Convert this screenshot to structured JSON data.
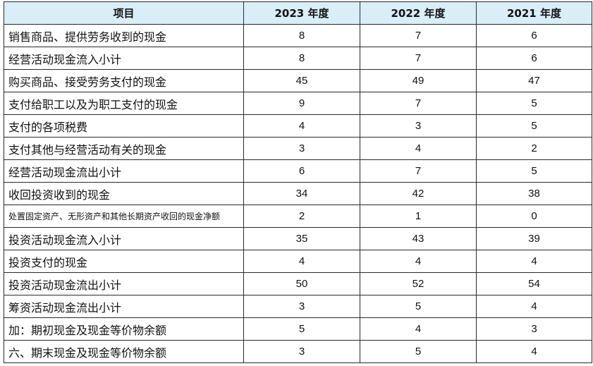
{
  "chart_data": {
    "type": "table",
    "columns": [
      "项目",
      "2023 年度",
      "2022 年度",
      "2021 年度"
    ],
    "rows": [
      {
        "label": "销售商品、提供劳务收到的现金",
        "values": [
          "8",
          "7",
          "6"
        ]
      },
      {
        "label": "经营活动现金流入小计",
        "values": [
          "8",
          "7",
          "6"
        ]
      },
      {
        "label": "购买商品、接受劳务支付的现金",
        "values": [
          "45",
          "49",
          "47"
        ]
      },
      {
        "label": "支付给职工以及为职工支付的现金",
        "values": [
          "9",
          "7",
          "5"
        ]
      },
      {
        "label": "支付的各项税费",
        "values": [
          "4",
          "3",
          "5"
        ]
      },
      {
        "label": "支付其他与经营活动有关的现金",
        "values": [
          "3",
          "4",
          "2"
        ]
      },
      {
        "label": "经营活动现金流出小计",
        "values": [
          "6",
          "7",
          "5"
        ]
      },
      {
        "label": "收回投资收到的现金",
        "values": [
          "34",
          "42",
          "38"
        ]
      },
      {
        "label": "处置固定资产、无形资产和其他长期资产收回的现金净额",
        "values": [
          "2",
          "1",
          "0"
        ]
      },
      {
        "label": "投资活动现金流入小计",
        "values": [
          "35",
          "43",
          "39"
        ]
      },
      {
        "label": "投资支付的现金",
        "values": [
          "4",
          "4",
          "4"
        ]
      },
      {
        "label": "投资活动现金流出小计",
        "values": [
          "50",
          "52",
          "54"
        ]
      },
      {
        "label": "筹资活动现金流出小计",
        "values": [
          "3",
          "5",
          "4"
        ]
      },
      {
        "label": "加：期初现金及现金等价物余额",
        "values": [
          "5",
          "4",
          "3"
        ]
      },
      {
        "label": "六、期末现金及现金等价物余额",
        "values": [
          "3",
          "5",
          "4"
        ]
      }
    ]
  },
  "colors": {
    "header_bg": "#d9eef7",
    "border": "#2a2a2a",
    "text": "#111111"
  }
}
